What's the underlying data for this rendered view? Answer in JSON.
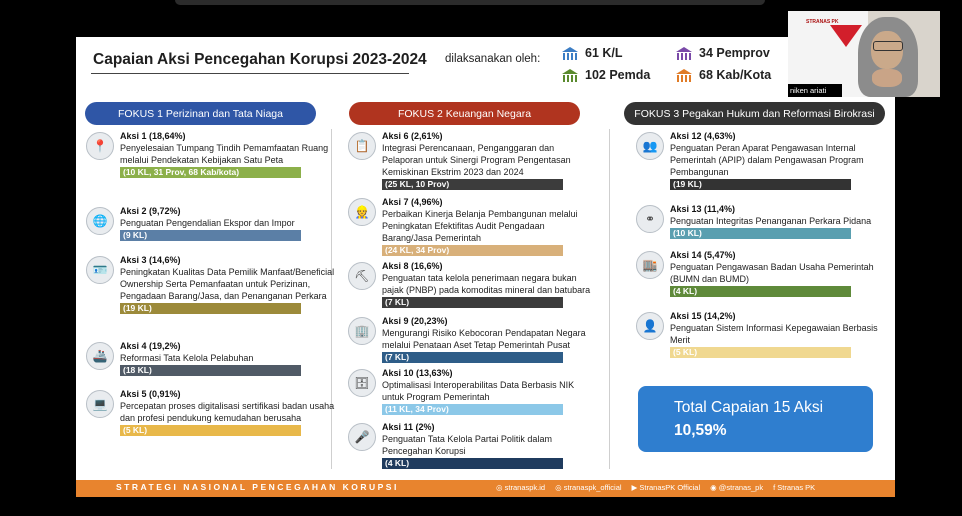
{
  "slide": {
    "title": "Capaian Aksi Pencegahan Korupsi 2023-2024",
    "executed_by_label": "dilaksanakan oleh:",
    "stats": [
      {
        "label": "61 K/L",
        "color": "#3c7dc4"
      },
      {
        "label": "34 Pemprov",
        "color": "#7a4aa8"
      },
      {
        "label": "102 Pemda",
        "color": "#5a8a2e"
      },
      {
        "label": "68 Kab/Kota",
        "color": "#e07b26"
      }
    ],
    "columns": [
      {
        "header": "FOKUS 1 Perizinan dan Tata Niaga",
        "color": "#2f56a6"
      },
      {
        "header": "FOKUS 2 Keuangan Negara",
        "color": "#b0341f"
      },
      {
        "header": "FOKUS 3 Pegakan Hukum dan Reformasi Birokrasi",
        "color": "#333333"
      }
    ],
    "fokus1": [
      {
        "title": "Aksi 1 (18,64%)",
        "desc": "Penyelesaian Tumpang Tindih Pemamfaatan Ruang melalui Pendekatan Kebijakan Satu Peta",
        "bar": "(10 KL, 31 Prov, 68 Kab/kota)",
        "bar_color": "#8cb04a",
        "icon": "map-pin-icon",
        "glyph": "📍"
      },
      {
        "title": "Aksi 2 (9,72%)",
        "desc": "Penguatan Pengendalian Ekspor dan Impor",
        "bar": "(9 KL)",
        "bar_color": "#5b7fa6",
        "icon": "globe-icon",
        "glyph": "🌐"
      },
      {
        "title": "Aksi 3 (14,6%)",
        "desc": "Peningkatan Kualitas Data Pemilik Manfaat/Beneficial Ownership Serta Pemanfaatan untuk Perizinan, Pengadaan Barang/Jasa, dan Penanganan Perkara",
        "bar": "(19 KL)",
        "bar_color": "#9c8a3a",
        "icon": "id-card-icon",
        "glyph": "🪪"
      },
      {
        "title": "Aksi 4 (19,2%)",
        "desc": "Reformasi Tata Kelola Pelabuhan",
        "bar": "(18 KL)",
        "bar_color": "#505a66",
        "icon": "ship-icon",
        "glyph": "🚢"
      },
      {
        "title": "Aksi 5 (0,91%)",
        "desc": "Percepatan proses digitalisasi sertifikasi badan usaha dan profesi pendukung kemudahan berusaha",
        "bar": "(5 KL)",
        "bar_color": "#e8b84a",
        "icon": "laptop-icon",
        "glyph": "💻"
      }
    ],
    "fokus2": [
      {
        "title": "Aksi 6 (2,61%)",
        "desc": "Integrasi Perencanaan, Penganggaran dan Pelaporan untuk Sinergi Program Pengentasan Kemiskinan Ekstrim 2023 dan 2024",
        "bar": "(25 KL, 10 Prov)",
        "bar_color": "#3c3c3c",
        "icon": "document-icon",
        "glyph": "📋"
      },
      {
        "title": "Aksi 7 (4,96%)",
        "desc": "Perbaikan Kinerja Belanja Pembangunan melalui Peningkatan Efektifitas Audit Pengadaan Barang/Jasa Pemerintah",
        "bar": "(24 KL, 34 Prov)",
        "bar_color": "#d8b07a",
        "icon": "worker-icon",
        "glyph": "👷"
      },
      {
        "title": "Aksi 8 (16,6%)",
        "desc": "Penguatan tata kelola penerimaan negara bukan pajak (PNBP) pada komoditas mineral dan batubara",
        "bar": "(7 KL)",
        "bar_color": "#3c3c3c",
        "icon": "mining-icon",
        "glyph": "⛏"
      },
      {
        "title": "Aksi 9 (20,23%)",
        "desc": "Mengurangi Risiko Kebocoran Pendapatan Negara melalui Penataan Aset Tetap Pemerintah Pusat",
        "bar": "(7 KL)",
        "bar_color": "#2e5d88",
        "icon": "building-icon",
        "glyph": "🏢"
      },
      {
        "title": "Aksi 10 (13,63%)",
        "desc": "Optimalisasi Interoperabilitas Data Berbasis NIK untuk Program Pemerintah",
        "bar": "(11 KL, 34 Prov)",
        "bar_color": "#8cc8e8",
        "icon": "database-icon",
        "glyph": "🗄"
      },
      {
        "title": "Aksi 11 (2%)",
        "desc": "Penguatan Tata Kelola Partai Politik dalam Pencegahan Korupsi",
        "bar": "(4 KL)",
        "bar_color": "#1f3b5e",
        "icon": "speaker-icon",
        "glyph": "🎤"
      }
    ],
    "fokus3": [
      {
        "title": "Aksi 12 (4,63%)",
        "desc": "Penguatan Peran Aparat Pengawasan Internal Pemerintah (APIP) dalam Pengawasan Program Pembangunan",
        "bar": "(19 KL)",
        "bar_color": "#333333",
        "icon": "team-icon",
        "glyph": "👥"
      },
      {
        "title": "Aksi 13 (11,4%)",
        "desc": "Penguatan Integritas Penanganan Perkara Pidana",
        "bar": "(10 KL)",
        "bar_color": "#5a9fb0",
        "icon": "handcuffs-icon",
        "glyph": "⚭"
      },
      {
        "title": "Aksi 14 (5,47%)",
        "desc": "Penguatan Pengawasan Badan Usaha Pemerintah (BUMN dan BUMD)",
        "bar": "(4 KL)",
        "bar_color": "#5f8a3a",
        "icon": "office-icon",
        "glyph": "🏬"
      },
      {
        "title": "Aksi 15 (14,2%)",
        "desc": "Penguatan Sistem Informasi Kepegawaian Berbasis Merit",
        "bar": "(5 KL)",
        "bar_color": "#f0d890",
        "icon": "people-icon",
        "glyph": "👤"
      }
    ],
    "total": {
      "line1": "Total Capaian 15 Aksi",
      "line2": "10,59%"
    },
    "footer": {
      "left": "STRATEGI NASIONAL PENCEGAHAN KORUPSI",
      "socials": [
        "stranaspk.id",
        "stranaspk_official",
        "StranasPK Official",
        "@stranas_pk",
        "Stranas PK"
      ]
    }
  },
  "camera": {
    "participant_name": "niken ariati",
    "logo_text": "STRANAS PK"
  }
}
